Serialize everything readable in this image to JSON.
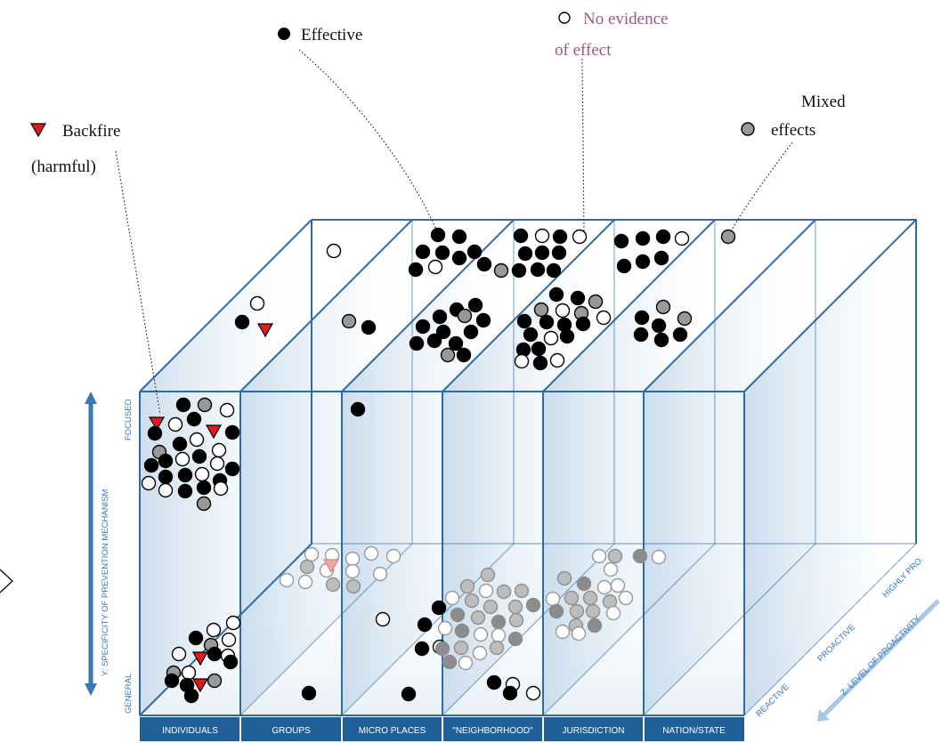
{
  "legend": {
    "effective": "Effective",
    "no_evidence_line1": "No evidence",
    "no_evidence_line2": "of effect",
    "mixed_line1": "Mixed",
    "mixed_line2": "effects",
    "backfire_line1": "Backfire",
    "backfire_line2": "(harmful)"
  },
  "y_axis": {
    "title": "Y: SPECIFICITY OF PREVENTION MECHANISM",
    "top_label": "FOCUSED",
    "bottom_label": "GENERAL"
  },
  "x_axis": {
    "categories": [
      "INDIVIDUALS",
      "GROUPS",
      "MICRO PLACES",
      "\"NEIGHBORHOOD\"",
      "JURISDICTION",
      "NATION/STATE"
    ]
  },
  "z_axis": {
    "title": "Z: LEVEL OF PROACTIVITY",
    "levels": [
      "REACTIVE",
      "PROACTIVE",
      "HIGHLY PRO."
    ]
  },
  "colors": {
    "frame": "#2e6aa5",
    "x_band": "#215f99",
    "effective": "#000000",
    "no_evidence": "#ffffff",
    "mixed": "#999999",
    "backfire": "#e11b1b",
    "legend_no_evidence_text": "#a0577e"
  }
}
